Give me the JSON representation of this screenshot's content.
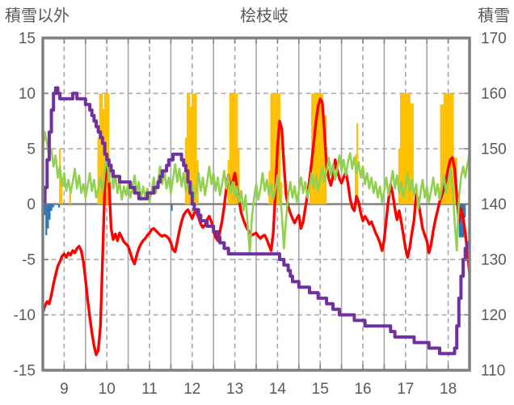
{
  "chart_data": {
    "type": "line",
    "title": "桧枝岐",
    "left_axis": {
      "label": "積雪以外",
      "min": -15,
      "max": 15,
      "ticks": [
        15,
        10,
        5,
        0,
        -5,
        -10,
        -15
      ]
    },
    "right_axis": {
      "label": "積雪",
      "min": 110,
      "max": 170,
      "ticks": [
        170,
        160,
        150,
        140,
        130,
        120,
        110
      ]
    },
    "x_axis": {
      "min": 9,
      "max": 19,
      "labels": [
        "9",
        "10",
        "11",
        "12",
        "13",
        "14",
        "15",
        "16",
        "17",
        "18"
      ]
    },
    "grid": {
      "h_dashed": [
        10,
        5,
        -5,
        -10
      ],
      "zero_line": 0,
      "v_solid": [
        10,
        11,
        12,
        13,
        14,
        15,
        16,
        17,
        18
      ],
      "v_dashed": [
        9.5,
        10.5,
        11.5,
        12.5,
        13.5,
        14.5,
        15.5,
        16.5,
        17.5,
        18.5
      ],
      "grid_color": "#A6A6A6",
      "axis_color": "#808080"
    },
    "series": [
      {
        "id": "sunshine-bars",
        "kind": "bar",
        "axis": "left",
        "color": "#FFC000",
        "bar_width_days": 0.0417,
        "points": [
          [
            9.38,
            5
          ],
          [
            9.42,
            2
          ],
          [
            9.62,
            1.5
          ],
          [
            10.28,
            6
          ],
          [
            10.32,
            10
          ],
          [
            10.36,
            10
          ],
          [
            10.4,
            8.6
          ],
          [
            10.44,
            10
          ],
          [
            10.48,
            10
          ],
          [
            10.52,
            10
          ],
          [
            10.56,
            2
          ],
          [
            12.33,
            6
          ],
          [
            12.37,
            10
          ],
          [
            12.41,
            10
          ],
          [
            12.45,
            8.8
          ],
          [
            12.49,
            10
          ],
          [
            12.53,
            10
          ],
          [
            12.57,
            10
          ],
          [
            12.61,
            4
          ],
          [
            13.33,
            4
          ],
          [
            13.37,
            10
          ],
          [
            13.41,
            10
          ],
          [
            13.45,
            10
          ],
          [
            13.49,
            10
          ],
          [
            13.53,
            10
          ],
          [
            13.57,
            5
          ],
          [
            14.29,
            3
          ],
          [
            14.33,
            10
          ],
          [
            14.37,
            10
          ],
          [
            14.41,
            10
          ],
          [
            14.45,
            10
          ],
          [
            14.49,
            10
          ],
          [
            14.53,
            10
          ],
          [
            14.57,
            2
          ],
          [
            15.25,
            3.5
          ],
          [
            15.29,
            10
          ],
          [
            15.33,
            10
          ],
          [
            15.37,
            10
          ],
          [
            15.41,
            10
          ],
          [
            15.45,
            10
          ],
          [
            15.49,
            10
          ],
          [
            15.53,
            10
          ],
          [
            15.57,
            8
          ],
          [
            15.61,
            8
          ],
          [
            16.31,
            4.5
          ],
          [
            16.35,
            7.3
          ],
          [
            17.33,
            5
          ],
          [
            17.37,
            10
          ],
          [
            17.41,
            10
          ],
          [
            17.45,
            10
          ],
          [
            17.49,
            10
          ],
          [
            17.53,
            10
          ],
          [
            17.57,
            10
          ],
          [
            17.61,
            9.1
          ],
          [
            17.65,
            9.1
          ],
          [
            18.27,
            1.5
          ],
          [
            18.31,
            9
          ],
          [
            18.35,
            9
          ],
          [
            18.39,
            10
          ],
          [
            18.43,
            10
          ],
          [
            18.47,
            10
          ],
          [
            18.51,
            10
          ],
          [
            18.55,
            10
          ],
          [
            18.59,
            10
          ],
          [
            18.63,
            4.2
          ],
          [
            18.67,
            4.2
          ]
        ]
      },
      {
        "id": "precip-bars",
        "kind": "bar",
        "axis": "left",
        "color": "#2E75B6",
        "bar_width_days": 0.0417,
        "points": [
          [
            9.02,
            -1.0
          ],
          [
            9.06,
            -2.8
          ],
          [
            9.1,
            -2.2
          ],
          [
            9.14,
            -1.4
          ],
          [
            9.18,
            -0.6
          ],
          [
            9.22,
            -0.3
          ],
          [
            9.36,
            -0.3
          ],
          [
            12.0,
            -0.6
          ],
          [
            18.71,
            -1.8
          ],
          [
            18.75,
            -3.0
          ],
          [
            18.79,
            -3.0
          ],
          [
            18.83,
            -3.0
          ],
          [
            18.87,
            -1.2
          ]
        ]
      },
      {
        "id": "temperature-line",
        "kind": "line",
        "axis": "left",
        "color": "#FF0000",
        "width": 3.4,
        "x0": 9,
        "dx": 0.05,
        "values": [
          -9.8,
          -9.2,
          -8.8,
          -9.0,
          -8.2,
          -7.2,
          -6.4,
          -5.6,
          -5.2,
          -4.7,
          -4.5,
          -4.8,
          -4.4,
          -4.6,
          -4.2,
          -4.4,
          -4.0,
          -3.8,
          -4.2,
          -5.2,
          -6.8,
          -8.6,
          -10.2,
          -11.6,
          -12.8,
          -13.6,
          -13.2,
          -11.0,
          -5.0,
          1.5,
          4.1,
          2.0,
          -2.2,
          -3.2,
          -2.7,
          -3.3,
          -2.6,
          -3.0,
          -3.4,
          -3.6,
          -3.8,
          -4.4,
          -5.0,
          -5.4,
          -4.6,
          -4.0,
          -3.6,
          -3.3,
          -3.1,
          -2.8,
          -2.6,
          -2.3,
          -2.2,
          -2.4,
          -2.6,
          -2.8,
          -2.9,
          -2.8,
          -2.9,
          -3.1,
          -3.5,
          -4.1,
          -4.3,
          -3.4,
          -2.4,
          -1.6,
          -1.0,
          -0.7,
          -0.5,
          -0.9,
          -1.3,
          -0.8,
          -0.7,
          -1.2,
          -1.8,
          -2.1,
          -1.9,
          -1.4,
          -1.1,
          -1.6,
          -2.3,
          -3.0,
          -3.3,
          -2.5,
          -1.5,
          -0.2,
          1.4,
          2.6,
          1.6,
          2.0,
          2.8,
          1.6,
          0.3,
          -0.8,
          -1.4,
          -1.9,
          -2.3,
          -2.6,
          -2.8,
          -2.7,
          -2.6,
          -2.9,
          -3.1,
          -2.9,
          -2.8,
          -3.2,
          -3.7,
          -4.2,
          -2.6,
          1.0,
          5.2,
          7.5,
          6.8,
          3.6,
          0.8,
          -0.2,
          -0.8,
          -1.3,
          -1.7,
          -1.3,
          -1.0,
          -2.2,
          -1.6,
          -0.4,
          0.8,
          2.2,
          3.8,
          5.6,
          7.4,
          8.8,
          9.5,
          9.2,
          6.5,
          3.4,
          2.3,
          1.7,
          2.5,
          4.0,
          3.1,
          2.3,
          1.9,
          2.4,
          2.9,
          1.9,
          0.5,
          -0.3,
          -0.6,
          0.7,
          0.2,
          -0.8,
          -1.5,
          -1.1,
          -1.4,
          -1.8,
          -1.6,
          -2.1,
          -2.6,
          -3.0,
          -3.5,
          -4.2,
          -3.2,
          -1.4,
          0.4,
          1.8,
          0.9,
          -0.4,
          -1.4,
          -0.6,
          -1.6,
          -2.8,
          -4.0,
          -4.8,
          -3.9,
          -2.6,
          -1.4,
          0.9,
          0.2,
          -1.0,
          -2.2,
          -2.8,
          -3.3,
          -4.4,
          -3.6,
          -2.4,
          -1.4,
          -0.6,
          0.2,
          0.8,
          1.4,
          2.2,
          3.2,
          4.0,
          4.2,
          3.2,
          0.8,
          -1.6,
          -0.4,
          -1.2,
          -2.6,
          -4.4,
          -6.2
        ]
      },
      {
        "id": "wind-line",
        "kind": "line",
        "axis": "left",
        "color": "#92D050",
        "width": 2.6,
        "x0": 9,
        "dx": 0.05,
        "values": [
          5.2,
          6.5,
          5.4,
          4.4,
          5.0,
          3.4,
          4.4,
          2.4,
          3.4,
          1.6,
          2.8,
          1.2,
          2.2,
          1.0,
          2.0,
          3.2,
          1.4,
          2.6,
          1.0,
          1.8,
          0.6,
          1.6,
          2.8,
          1.2,
          2.2,
          0.6,
          1.4,
          2.4,
          1.0,
          3.0,
          4.4,
          2.0,
          3.6,
          1.4,
          2.6,
          1.0,
          2.0,
          0.4,
          1.6,
          0.8,
          1.8,
          0.6,
          1.4,
          2.6,
          1.0,
          2.0,
          0.4,
          1.6,
          0.6,
          1.4,
          0.2,
          1.2,
          2.4,
          1.0,
          2.2,
          3.4,
          1.8,
          3.0,
          1.4,
          2.4,
          1.0,
          2.2,
          3.6,
          2.0,
          3.2,
          1.6,
          2.8,
          1.2,
          2.2,
          0.8,
          1.8,
          0.4,
          1.4,
          2.8,
          1.2,
          2.4,
          0.8,
          2.0,
          3.4,
          1.8,
          2.8,
          1.2,
          2.4,
          0.8,
          1.8,
          3.0,
          1.4,
          2.6,
          1.0,
          2.0,
          0.6,
          1.6,
          0.2,
          1.2,
          -0.6,
          0.8,
          -1.8,
          -4.4,
          -1.2,
          0.6,
          1.8,
          0.4,
          1.4,
          2.8,
          1.2,
          2.2,
          0.8,
          1.8,
          0.4,
          1.4,
          2.6,
          1.0,
          -0.8,
          -4.0,
          -1.4,
          0.8,
          2.0,
          0.6,
          1.6,
          0.2,
          1.2,
          2.4,
          1.0,
          2.0,
          0.6,
          1.6,
          2.8,
          1.4,
          2.6,
          1.2,
          2.2,
          3.4,
          2.0,
          3.0,
          4.2,
          2.6,
          3.6,
          2.2,
          3.2,
          4.4,
          3.0,
          4.0,
          2.6,
          3.8,
          4.6,
          3.2,
          4.2,
          2.8,
          3.8,
          2.4,
          3.4,
          1.8,
          2.8,
          1.4,
          2.4,
          1.0,
          2.0,
          0.6,
          1.6,
          0.2,
          1.2,
          2.4,
          0.8,
          1.8,
          3.0,
          1.4,
          2.6,
          1.0,
          2.0,
          0.6,
          1.6,
          2.8,
          1.2,
          2.2,
          0.8,
          1.8,
          -0.4,
          1.0,
          2.2,
          0.6,
          1.6,
          0.2,
          1.2,
          2.4,
          0.8,
          1.8,
          0.4,
          1.4,
          2.6,
          1.0,
          2.0,
          3.2,
          1.6,
          -1.5,
          -4.2,
          0.5,
          2.4,
          3.4,
          2.4,
          3.6,
          4.6
        ]
      },
      {
        "id": "snow-depth-line",
        "kind": "line",
        "axis": "right",
        "color": "#7030A0",
        "width": 4,
        "step": true,
        "x0": 9,
        "dx": 0.05,
        "values": [
          140,
          143,
          148,
          153,
          157,
          160,
          161,
          160,
          159,
          159,
          159,
          159,
          159,
          159,
          160,
          160,
          159,
          159,
          159,
          159,
          158,
          158,
          157,
          156,
          155,
          154,
          153,
          152,
          151,
          149,
          148,
          147,
          146,
          145,
          145,
          145,
          144,
          144,
          144,
          144,
          144,
          143,
          143,
          142,
          142,
          141,
          141,
          141,
          141,
          142,
          142,
          142,
          143,
          143,
          144,
          145,
          146,
          146,
          147,
          148,
          148,
          149,
          149,
          149,
          149,
          148,
          147,
          146,
          144,
          142,
          140,
          139,
          139,
          138,
          137,
          137,
          137,
          136,
          136,
          136,
          135,
          135,
          134,
          133,
          133,
          132,
          132,
          131,
          131,
          131,
          131,
          131,
          131,
          131,
          131,
          131,
          131,
          131,
          131,
          131,
          131,
          131,
          131,
          131,
          131,
          131,
          131,
          131,
          131,
          131,
          131,
          130,
          130,
          129,
          129,
          128,
          127,
          126,
          126,
          126,
          125,
          125,
          125,
          125,
          125,
          124,
          124,
          124,
          124,
          123,
          123,
          123,
          123,
          122,
          122,
          122,
          121,
          121,
          121,
          120,
          120,
          120,
          120,
          120,
          120,
          120,
          119,
          119,
          119,
          119,
          119,
          118,
          118,
          118,
          118,
          118,
          118,
          118,
          118,
          118,
          118,
          118,
          118,
          117,
          117,
          116,
          116,
          116,
          116,
          116,
          116,
          116,
          116,
          116,
          115,
          115,
          115,
          115,
          115,
          115,
          115,
          114,
          114,
          114,
          114,
          114,
          113,
          113,
          113,
          113,
          113,
          113,
          113,
          114,
          118,
          123,
          127,
          130,
          132,
          133,
          133
        ]
      }
    ]
  }
}
